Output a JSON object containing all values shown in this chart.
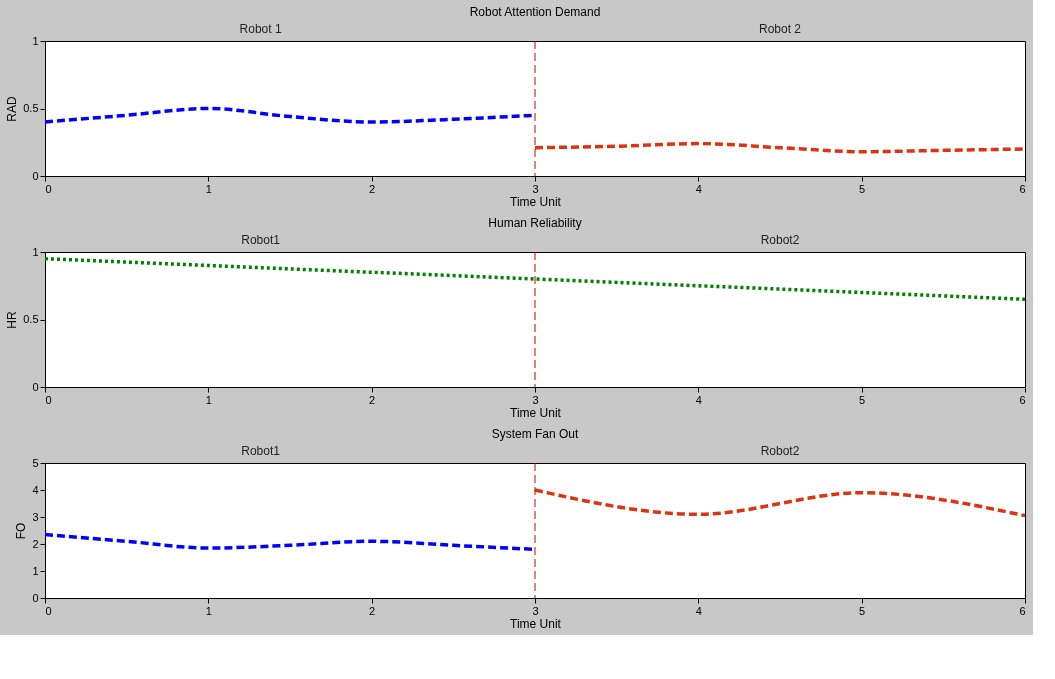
{
  "chart_data": [
    {
      "type": "line",
      "title": "Robot Attention Demand",
      "xlabel": "Time Unit",
      "ylabel": "RAD",
      "annotations": [
        "Robot 1",
        "Robot 2"
      ],
      "xlim": [
        0,
        6
      ],
      "xticks": [
        0,
        1,
        2,
        3,
        4,
        5,
        6
      ],
      "ylim": [
        0,
        1
      ],
      "yticks": [
        0,
        0.5,
        1
      ],
      "grid": false,
      "legend": false,
      "ref_lines": [
        {
          "axis": "x",
          "value": 3,
          "label": null,
          "color": "#cc0000",
          "line_style": "dashed"
        }
      ],
      "series": [
        {
          "color": "#0000ff",
          "line_style": "dashed",
          "x": [
            0,
            0.5,
            1,
            1.5,
            2,
            2.5,
            3
          ],
          "values": [
            0.4,
            0.45,
            0.5,
            0.44,
            0.4,
            0.42,
            0.45
          ]
        },
        {
          "color": "#dd3311",
          "line_style": "dashed",
          "x": [
            3,
            3.5,
            4,
            4.5,
            5,
            5.5,
            6
          ],
          "values": [
            0.21,
            0.22,
            0.24,
            0.21,
            0.18,
            0.19,
            0.2
          ]
        }
      ]
    },
    {
      "type": "line",
      "title": "Human Reliability",
      "xlabel": "Time Unit",
      "ylabel": "HR",
      "annotations": [
        "Robot1",
        "Robot2"
      ],
      "xlim": [
        0,
        6
      ],
      "xticks": [
        0,
        1,
        2,
        3,
        4,
        5,
        6
      ],
      "ylim": [
        0,
        1
      ],
      "yticks": [
        0,
        0.5,
        1
      ],
      "grid": false,
      "legend": false,
      "ref_lines": [
        {
          "axis": "x",
          "value": 3,
          "label": null,
          "color": "#cc0000",
          "line_style": "dashed"
        }
      ],
      "series": [
        {
          "color": "#008000",
          "line_style": "dotted",
          "x": [
            0,
            1,
            2,
            3,
            4,
            5,
            6
          ],
          "values": [
            0.95,
            0.9,
            0.85,
            0.8,
            0.75,
            0.7,
            0.65
          ]
        }
      ]
    },
    {
      "type": "line",
      "title": "System Fan Out",
      "xlabel": "Time Unit",
      "ylabel": "FO",
      "annotations": [
        "Robot1",
        "Robot2"
      ],
      "xlim": [
        0,
        6
      ],
      "xticks": [
        0,
        1,
        2,
        3,
        4,
        5,
        6
      ],
      "ylim": [
        0,
        5
      ],
      "yticks": [
        0,
        1,
        2,
        3,
        4,
        5
      ],
      "grid": false,
      "legend": false,
      "ref_lines": [
        {
          "axis": "x",
          "value": 3,
          "label": null,
          "color": "#cc0000",
          "line_style": "dashed"
        }
      ],
      "series": [
        {
          "color": "#0000ff",
          "line_style": "dashed",
          "x": [
            0,
            0.5,
            1,
            1.5,
            2,
            2.5,
            3
          ],
          "values": [
            2.35,
            2.1,
            1.85,
            1.95,
            2.1,
            1.95,
            1.8
          ]
        },
        {
          "color": "#dd3311",
          "line_style": "dashed",
          "x": [
            3,
            4,
            5,
            6
          ],
          "values": [
            4.0,
            3.1,
            3.9,
            3.05
          ]
        }
      ]
    }
  ]
}
